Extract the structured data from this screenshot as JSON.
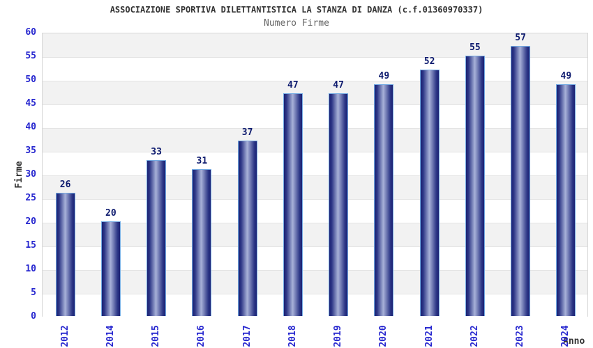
{
  "chart_data": {
    "type": "bar",
    "title": "ASSOCIAZIONE SPORTIVA DILETTANTISTICA LA STANZA DI DANZA (c.f.01360970337)",
    "subtitle": "Numero Firme",
    "categories": [
      "2012",
      "2014",
      "2015",
      "2016",
      "2017",
      "2018",
      "2019",
      "2020",
      "2021",
      "2022",
      "2023",
      "2024"
    ],
    "values": [
      26,
      20,
      33,
      31,
      37,
      47,
      47,
      49,
      52,
      55,
      57,
      49
    ],
    "xlabel": "Anno",
    "ylabel": "Firme",
    "ylim": [
      0,
      60
    ],
    "ytick_step": 5,
    "legend": "none",
    "grid": "alternating horizontal bands every 5 units",
    "colors": {
      "bar_edge_dark": "#1a2173",
      "bar_center_light": "#a8b1d8",
      "bar_border": "#74abe3",
      "axis_tick_label": "#2626cf",
      "value_label": "#0d1a6e",
      "band_gray": "#f2f2f2",
      "band_white": "#ffffff",
      "plot_border": "#d6d6d6",
      "title_color": "#333333",
      "subtitle_color": "#666666"
    }
  }
}
